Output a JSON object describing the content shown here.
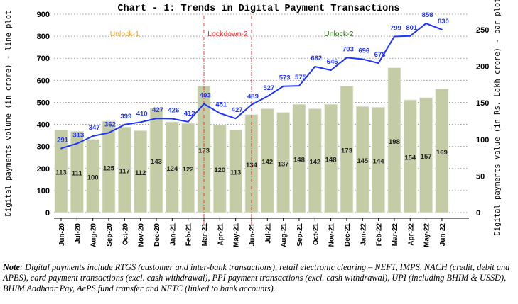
{
  "chart_data": {
    "type": "bar+line",
    "title": "Chart - 1: Trends in Digital Payment Transactions",
    "ylabel_left": "Digital payments volume (in crore) - line plot",
    "ylabel_right": "Digital payments value (in Rs. Lakh crore) - bar plot",
    "ylim_left": [
      0,
      900
    ],
    "ylim_right": [
      0,
      270
    ],
    "yticks_left": [
      0,
      100,
      200,
      300,
      400,
      500,
      600,
      700,
      800,
      900
    ],
    "yticks_right": [
      0,
      50,
      100,
      150,
      200,
      250
    ],
    "grid": true,
    "categories": [
      "Jun-20",
      "Jul-20",
      "Aug-20",
      "Sep-20",
      "Oct-20",
      "Nov-20",
      "Dec-20",
      "Jan-21",
      "Feb-21",
      "Mar-21",
      "Apr-21",
      "May-21",
      "Jun-21",
      "Jul-21",
      "Aug-21",
      "Sep-21",
      "Oct-21",
      "Nov-21",
      "Dec-21",
      "Jan-22",
      "Feb-22",
      "Mar-22",
      "Apr-22",
      "May-22",
      "Jun-22"
    ],
    "series": [
      {
        "name": "Volume (line)",
        "axis": "left",
        "color": "#1f35ff",
        "values": [
          291,
          313,
          347,
          362,
          399,
          410,
          427,
          426,
          412,
          493,
          451,
          427,
          489,
          527,
          573,
          575,
          662,
          646,
          703,
          696,
          678,
          799,
          801,
          858,
          830
        ]
      },
      {
        "name": "Value (bar)",
        "axis": "right",
        "color": "#c4cca5",
        "values": [
          113,
          111,
          100,
          125,
          117,
          112,
          143,
          124,
          122,
          173,
          120,
          113,
          134,
          142,
          137,
          148,
          142,
          148,
          173,
          145,
          144,
          198,
          154,
          157,
          169
        ]
      }
    ],
    "annotations": [
      {
        "text": "Unlock-1",
        "color": "#f5a623"
      },
      {
        "text": "Lockdown-2",
        "color": "#ff2a2a"
      },
      {
        "text": "Unlock-2",
        "color": "#2e6b1a"
      }
    ],
    "phase_lines_at": [
      "Mar-21",
      "Jun-21"
    ]
  },
  "note": {
    "label": "Note",
    "text": ": Digital payments include RTGS (customer and inter-bank transactions), retail electronic clearing – NEFT, IMPS, NACH (credit, debit and APBS), card payment transactions (excl. cash withdrawal), PPI payment transactions (excl. cash withdrawal), UPI (including BHIM & USSD), BHIM Aadhaar Pay, AePS fund transfer and NETC (linked to bank accounts)."
  }
}
